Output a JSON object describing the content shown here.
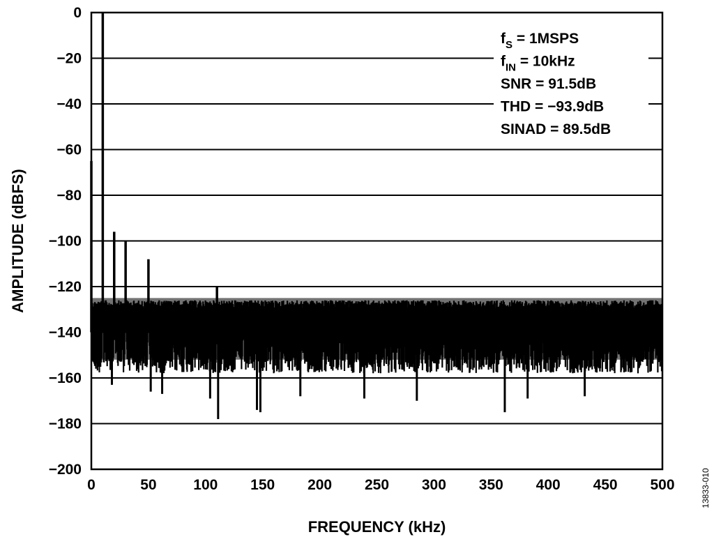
{
  "chart_data": {
    "type": "line",
    "title": "",
    "xlabel": "FREQUENCY (kHz)",
    "ylabel": "AMPLITUDE (dBFS)",
    "xlim": [
      0,
      500
    ],
    "ylim": [
      -200,
      0
    ],
    "x_ticks": [
      "0",
      "50",
      "100",
      "150",
      "200",
      "250",
      "300",
      "350",
      "400",
      "450",
      "500"
    ],
    "y_ticks": [
      "0",
      "−20",
      "−40",
      "−60",
      "−80",
      "−100",
      "−120",
      "−140",
      "−160",
      "−180",
      "−200"
    ],
    "grid": "horizontal",
    "noise_floor_dBFS": [
      -140,
      -126
    ],
    "series": [
      {
        "name": "",
        "color": "#000000",
        "peaks": [
          {
            "x": 0,
            "y": -65
          },
          {
            "x": 10,
            "y": 0
          },
          {
            "x": 20,
            "y": -96
          },
          {
            "x": 30,
            "y": -100
          },
          {
            "x": 50,
            "y": -108
          },
          {
            "x": 110,
            "y": -120
          }
        ],
        "dips": [
          {
            "x": 18,
            "y": -163
          },
          {
            "x": 52,
            "y": -166
          },
          {
            "x": 62,
            "y": -167
          },
          {
            "x": 104,
            "y": -169
          },
          {
            "x": 111,
            "y": -178
          },
          {
            "x": 145,
            "y": -174
          },
          {
            "x": 148,
            "y": -175
          },
          {
            "x": 183,
            "y": -168
          },
          {
            "x": 239,
            "y": -169
          },
          {
            "x": 285,
            "y": -170
          },
          {
            "x": 362,
            "y": -175
          },
          {
            "x": 382,
            "y": -169
          },
          {
            "x": 432,
            "y": -168
          }
        ]
      }
    ],
    "annotations": [
      {
        "main": "f",
        "sub": "S",
        "rest": " = 1MSPS"
      },
      {
        "main": "f",
        "sub": "IN",
        "rest": " = 10kHz"
      },
      {
        "main": "SNR = 91.5dB",
        "sub": "",
        "rest": ""
      },
      {
        "main": "THD = −93.9dB",
        "sub": "",
        "rest": ""
      },
      {
        "main": "SINAD = 89.5dB",
        "sub": "",
        "rest": ""
      }
    ],
    "figure_id": "13833-010"
  }
}
